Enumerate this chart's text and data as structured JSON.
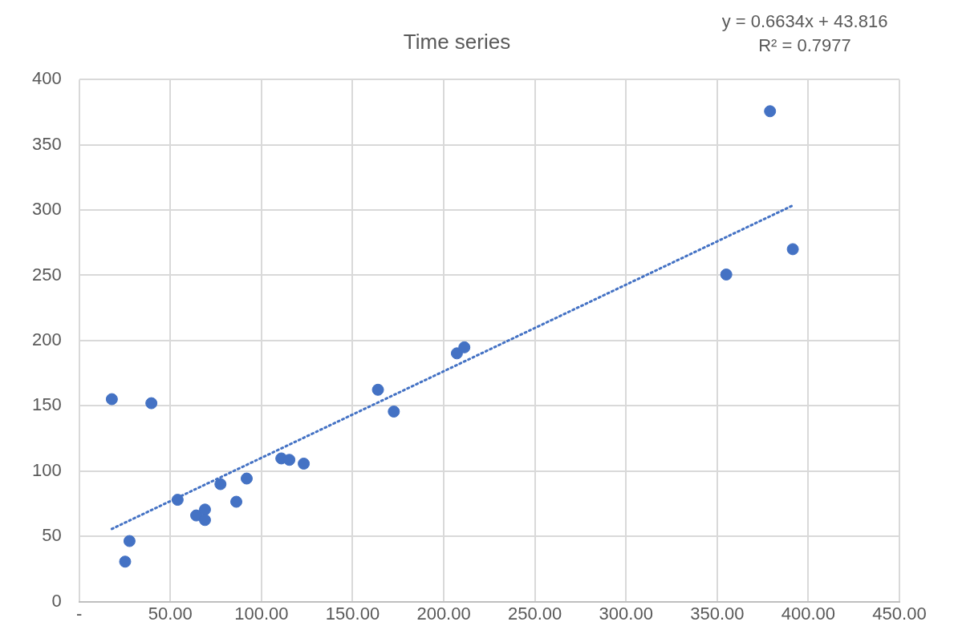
{
  "chart_data": {
    "type": "scatter",
    "title": "Time series",
    "annotations": [
      "y = 0.6634x + 43.816",
      "R² = 0.7977"
    ],
    "xlim": [
      0,
      450
    ],
    "xticks": [
      {
        "value": 0,
        "label": "-"
      },
      {
        "value": 50,
        "label": "50.00"
      },
      {
        "value": 100,
        "label": "100.00"
      },
      {
        "value": 150,
        "label": "150.00"
      },
      {
        "value": 200,
        "label": "200.00"
      },
      {
        "value": 250,
        "label": "250.00"
      },
      {
        "value": 300,
        "label": "300.00"
      },
      {
        "value": 350,
        "label": "350.00"
      },
      {
        "value": 400,
        "label": "400.00"
      },
      {
        "value": 450,
        "label": "450.00"
      }
    ],
    "ylim": [
      0,
      400
    ],
    "yticks": [
      0,
      50,
      100,
      150,
      200,
      250,
      300,
      350,
      400
    ],
    "grid": true,
    "legend": false,
    "marker": "circle",
    "series": [
      {
        "color": "#4472c4",
        "x": [
          17.9,
          39.6,
          27.6,
          25.2,
          54,
          64.2,
          69,
          69,
          77.5,
          86.2,
          91.9,
          110.9,
          115.3,
          123.2,
          163.9,
          172.6,
          207.2,
          211.3,
          355,
          379,
          391.5
        ],
        "values": [
          155.1,
          152,
          46.4,
          30.6,
          78,
          66,
          70.5,
          62.5,
          90,
          76.5,
          94.3,
          109.7,
          108.6,
          105.7,
          162.3,
          145.6,
          190.2,
          194.8,
          250.6,
          375.7,
          270
        ]
      },
      {
        "type": "line",
        "color": "#4472c4",
        "line_style": "dotted",
        "marker": "none",
        "x": [
          17.9,
          391.5
        ],
        "values": [
          55.7,
          303.5
        ]
      }
    ]
  }
}
